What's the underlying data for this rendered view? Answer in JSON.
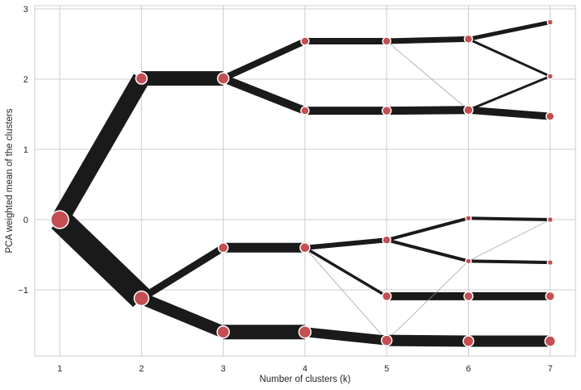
{
  "chart_data": {
    "type": "line",
    "subtype": "cluster-tree (Clustergram)",
    "title": "",
    "xlabel": "Number of clusters (k)",
    "ylabel": "PCA weighted mean of the clusters",
    "xlim": [
      0.7,
      7.3
    ],
    "ylim": [
      -1.95,
      3.05
    ],
    "xticks": [
      1,
      2,
      3,
      4,
      5,
      6,
      7
    ],
    "yticks": [
      -1,
      0,
      1,
      2,
      3
    ],
    "ytick_labels": [
      "−1",
      "0",
      "1",
      "2",
      "3"
    ],
    "grid": true,
    "legend": null,
    "colors": {
      "node_fill": "#c44e52",
      "node_edge": "#ffffff",
      "edge": "#1a1a1a",
      "grid": "#cccccc",
      "background": "#ffffff"
    },
    "nodes": [
      {
        "id": "k1c0",
        "k": 1,
        "y": 0.0,
        "size": 11
      },
      {
        "id": "k2c0",
        "k": 2,
        "y": 2.01,
        "size": 7
      },
      {
        "id": "k2c1",
        "k": 2,
        "y": -1.12,
        "size": 9
      },
      {
        "id": "k3c0",
        "k": 3,
        "y": 2.01,
        "size": 7
      },
      {
        "id": "k3c1",
        "k": 3,
        "y": -0.4,
        "size": 6
      },
      {
        "id": "k3c2",
        "k": 3,
        "y": -1.6,
        "size": 7.5
      },
      {
        "id": "k4c0",
        "k": 4,
        "y": 2.54,
        "size": 5
      },
      {
        "id": "k4c1",
        "k": 4,
        "y": 1.55,
        "size": 5
      },
      {
        "id": "k4c2",
        "k": 4,
        "y": -0.4,
        "size": 6
      },
      {
        "id": "k4c3",
        "k": 4,
        "y": -1.6,
        "size": 7.5
      },
      {
        "id": "k5c0",
        "k": 5,
        "y": 2.54,
        "size": 5
      },
      {
        "id": "k5c1",
        "k": 5,
        "y": 1.55,
        "size": 5.5
      },
      {
        "id": "k5c2",
        "k": 5,
        "y": -0.29,
        "size": 5
      },
      {
        "id": "k5c3",
        "k": 5,
        "y": -1.09,
        "size": 5.5
      },
      {
        "id": "k5c4",
        "k": 5,
        "y": -1.72,
        "size": 6.5
      },
      {
        "id": "k6c0",
        "k": 6,
        "y": 2.57,
        "size": 5
      },
      {
        "id": "k6c1",
        "k": 6,
        "y": 1.56,
        "size": 5.5
      },
      {
        "id": "k6c2",
        "k": 6,
        "y": 0.02,
        "size": 3.5
      },
      {
        "id": "k6c3",
        "k": 6,
        "y": -0.59,
        "size": 3.5
      },
      {
        "id": "k6c4",
        "k": 6,
        "y": -1.09,
        "size": 5.5
      },
      {
        "id": "k6c5",
        "k": 6,
        "y": -1.73,
        "size": 6.5
      },
      {
        "id": "k7c0",
        "k": 7,
        "y": 2.81,
        "size": 3.5
      },
      {
        "id": "k7c1",
        "k": 7,
        "y": 2.04,
        "size": 3.5
      },
      {
        "id": "k7c2",
        "k": 7,
        "y": 1.47,
        "size": 5
      },
      {
        "id": "k7c3",
        "k": 7,
        "y": 0.0,
        "size": 3.5
      },
      {
        "id": "k7c4",
        "k": 7,
        "y": -0.61,
        "size": 3.5
      },
      {
        "id": "k7c5",
        "k": 7,
        "y": -1.09,
        "size": 5.5
      },
      {
        "id": "k7c6",
        "k": 7,
        "y": -1.73,
        "size": 6.5
      }
    ],
    "edges": [
      {
        "from": "k1c0",
        "to": "k2c0",
        "width": 22
      },
      {
        "from": "k1c0",
        "to": "k2c1",
        "width": 30
      },
      {
        "from": "k2c0",
        "to": "k3c0",
        "width": 18
      },
      {
        "from": "k2c1",
        "to": "k3c1",
        "width": 9
      },
      {
        "from": "k2c1",
        "to": "k3c2",
        "width": 15
      },
      {
        "from": "k3c0",
        "to": "k4c0",
        "width": 8
      },
      {
        "from": "k3c0",
        "to": "k4c1",
        "width": 10
      },
      {
        "from": "k3c1",
        "to": "k4c2",
        "width": 12
      },
      {
        "from": "k3c2",
        "to": "k4c3",
        "width": 18
      },
      {
        "from": "k4c0",
        "to": "k5c0",
        "width": 8
      },
      {
        "from": "k4c0",
        "to": "k6c1_via_k5c1",
        "skip": true,
        "width": 0
      },
      {
        "from": "k4c1",
        "to": "k5c1",
        "width": 10
      },
      {
        "from": "k4c2",
        "to": "k5c2",
        "width": 6
      },
      {
        "from": "k4c2",
        "to": "k5c3",
        "width": 3.5
      },
      {
        "from": "k4c2",
        "to": "k5c4",
        "width": 0.6
      },
      {
        "from": "k4c3",
        "to": "k5c4",
        "width": 12
      },
      {
        "from": "k5c0",
        "to": "k6c0",
        "width": 7
      },
      {
        "from": "k5c0",
        "to": "k6c1",
        "width": 0.6
      },
      {
        "from": "k5c1",
        "to": "k6c1",
        "width": 10
      },
      {
        "from": "k5c2",
        "to": "k6c2",
        "width": 4
      },
      {
        "from": "k5c2",
        "to": "k6c3",
        "width": 4
      },
      {
        "from": "k5c3",
        "to": "k6c4",
        "width": 10
      },
      {
        "from": "k5c4",
        "to": "k6c3",
        "width": 0.5
      },
      {
        "from": "k5c4",
        "to": "k6c5",
        "width": 14
      },
      {
        "from": "k6c0",
        "to": "k7c0",
        "width": 5
      },
      {
        "from": "k6c0",
        "to": "k7c1",
        "width": 3
      },
      {
        "from": "k6c1",
        "to": "k7c1",
        "width": 3
      },
      {
        "from": "k6c1",
        "to": "k7c2",
        "width": 9
      },
      {
        "from": "k6c2",
        "to": "k7c3",
        "width": 4
      },
      {
        "from": "k6c3",
        "to": "k7c4",
        "width": 4
      },
      {
        "from": "k6c3",
        "to": "k7c3",
        "width": 0.5
      },
      {
        "from": "k6c4",
        "to": "k7c5",
        "width": 10
      },
      {
        "from": "k6c5",
        "to": "k7c6",
        "width": 14
      }
    ]
  }
}
